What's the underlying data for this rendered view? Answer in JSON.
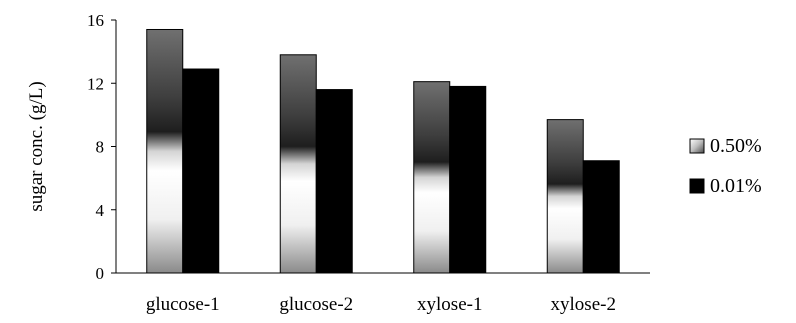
{
  "chart_data": {
    "type": "bar",
    "categories": [
      "glucose-1",
      "glucose-2",
      "xylose-1",
      "xylose-2"
    ],
    "series": [
      {
        "name": "0.50%",
        "values": [
          15.4,
          13.8,
          12.1,
          9.7
        ],
        "style": "gradient"
      },
      {
        "name": "0.01%",
        "values": [
          12.9,
          11.6,
          11.8,
          7.1
        ],
        "style": "solid",
        "color": "#000000"
      }
    ],
    "title": "",
    "xlabel": "",
    "ylabel": "sugar conc. (g/L)",
    "ylim": [
      0,
      16
    ],
    "yticks": [
      "0",
      "4",
      "8",
      "12",
      "16"
    ],
    "grid": false,
    "legend_position": "right"
  }
}
